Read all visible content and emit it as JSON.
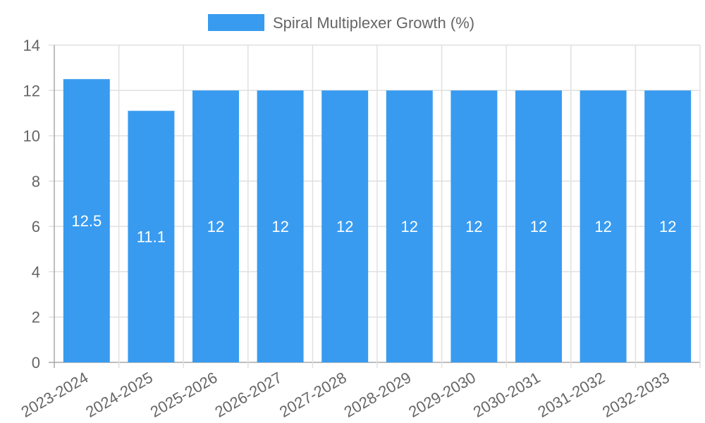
{
  "chart_data": {
    "type": "bar",
    "title": "",
    "xlabel": "",
    "ylabel": "",
    "categories": [
      "2023-2024",
      "2024-2025",
      "2025-2026",
      "2026-2027",
      "2027-2028",
      "2028-2029",
      "2029-2030",
      "2030-2031",
      "2031-2032",
      "2032-2033"
    ],
    "series": [
      {
        "name": "Spiral Multiplexer Growth (%)",
        "values": [
          12.5,
          11.1,
          12,
          12,
          12,
          12,
          12,
          12,
          12,
          12
        ],
        "color": "#389bf0"
      }
    ],
    "ylim": [
      0,
      14
    ],
    "yticks": [
      0,
      2,
      4,
      6,
      8,
      10,
      12,
      14
    ],
    "grid": true,
    "legend_position": "top",
    "data_labels": [
      "12.5",
      "11.1",
      "12",
      "12",
      "12",
      "12",
      "12",
      "12",
      "12",
      "12"
    ]
  },
  "legend": {
    "label": "Spiral Multiplexer Growth (%)",
    "color": "#389bf0"
  }
}
